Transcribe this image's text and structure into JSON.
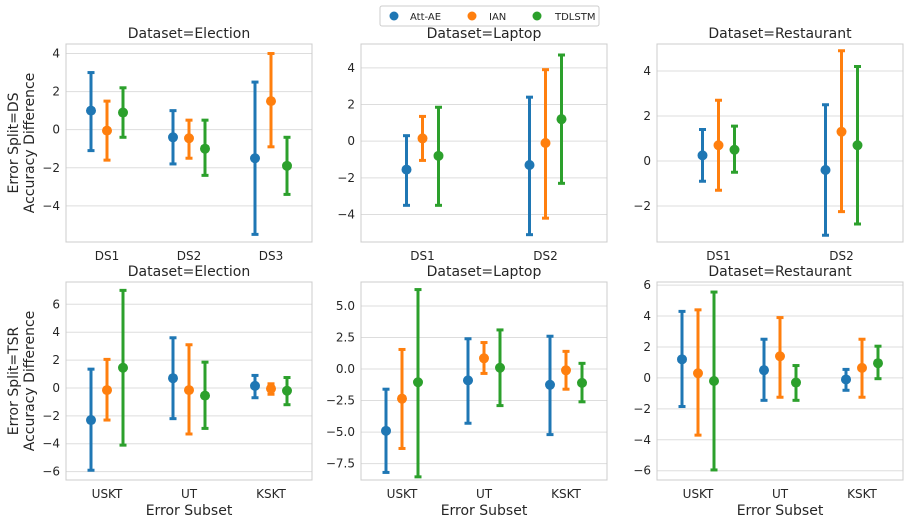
{
  "legend": [
    {
      "label": "Att-AE",
      "color": "#1f77b4"
    },
    {
      "label": "IAN",
      "color": "#ff7f0e"
    },
    {
      "label": "TDLSTM",
      "color": "#2ca02c"
    }
  ],
  "chart_data": [
    {
      "type": "scatter",
      "title": "Dataset=Election",
      "row_label": "Error Split=DS",
      "ylabel": "Accuracy Difference",
      "xlabel": "",
      "categories": [
        "DS1",
        "DS2",
        "DS3"
      ],
      "ylim": [
        -5.9,
        4.5
      ],
      "yticks": [
        -4,
        -2,
        0,
        2,
        4
      ],
      "series": [
        {
          "name": "Att-AE",
          "values": [
            1.0,
            -0.4,
            -1.5
          ],
          "lower": [
            -1.1,
            -1.8,
            -5.5
          ],
          "upper": [
            3.0,
            1.0,
            2.5
          ]
        },
        {
          "name": "IAN",
          "values": [
            -0.05,
            -0.45,
            1.5
          ],
          "lower": [
            -1.6,
            -1.5,
            -0.9
          ],
          "upper": [
            1.5,
            0.5,
            4.0
          ]
        },
        {
          "name": "TDLSTM",
          "values": [
            0.9,
            -1.0,
            -1.9
          ],
          "lower": [
            -0.4,
            -2.4,
            -3.4
          ],
          "upper": [
            2.2,
            0.5,
            -0.4
          ]
        }
      ]
    },
    {
      "type": "scatter",
      "title": "Dataset=Laptop",
      "row_label": "",
      "ylabel": "",
      "xlabel": "",
      "categories": [
        "DS1",
        "DS2"
      ],
      "ylim": [
        -5.5,
        5.3
      ],
      "yticks": [
        -4,
        -2,
        0,
        2,
        4
      ],
      "series": [
        {
          "name": "Att-AE",
          "values": [
            -1.55,
            -1.3
          ],
          "lower": [
            -3.5,
            -5.1
          ],
          "upper": [
            0.3,
            2.4
          ]
        },
        {
          "name": "IAN",
          "values": [
            0.15,
            -0.1
          ],
          "lower": [
            -1.05,
            -4.2
          ],
          "upper": [
            1.35,
            3.9
          ]
        },
        {
          "name": "TDLSTM",
          "values": [
            -0.8,
            1.2
          ],
          "lower": [
            -3.5,
            -2.3
          ],
          "upper": [
            1.85,
            4.7
          ]
        }
      ]
    },
    {
      "type": "scatter",
      "title": "Dataset=Restaurant",
      "row_label": "",
      "ylabel": "",
      "xlabel": "",
      "categories": [
        "DS1",
        "DS2"
      ],
      "ylim": [
        -3.6,
        5.2
      ],
      "yticks": [
        -2,
        0,
        2,
        4
      ],
      "series": [
        {
          "name": "Att-AE",
          "values": [
            0.25,
            -0.4
          ],
          "lower": [
            -0.9,
            -3.3
          ],
          "upper": [
            1.4,
            2.5
          ]
        },
        {
          "name": "IAN",
          "values": [
            0.7,
            1.3
          ],
          "lower": [
            -1.3,
            -2.25
          ],
          "upper": [
            2.7,
            4.9
          ]
        },
        {
          "name": "TDLSTM",
          "values": [
            0.5,
            0.7
          ],
          "lower": [
            -0.5,
            -2.8
          ],
          "upper": [
            1.55,
            4.2
          ]
        }
      ]
    },
    {
      "type": "scatter",
      "title": "Dataset=Election",
      "row_label": "Error Split=TSR",
      "ylabel": "Accuracy Difference",
      "xlabel": "Error Subset",
      "categories": [
        "USKT",
        "UT",
        "KSKT"
      ],
      "ylim": [
        -6.6,
        7.6
      ],
      "yticks": [
        -6,
        -4,
        -2,
        0,
        2,
        4,
        6
      ],
      "series": [
        {
          "name": "Att-AE",
          "values": [
            -2.3,
            0.7,
            0.15
          ],
          "lower": [
            -5.9,
            -2.2,
            -0.7
          ],
          "upper": [
            1.35,
            3.6,
            0.9
          ]
        },
        {
          "name": "IAN",
          "values": [
            -0.15,
            -0.15,
            -0.05
          ],
          "lower": [
            -2.3,
            -3.3,
            -0.45
          ],
          "upper": [
            2.05,
            3.1,
            0.3
          ]
        },
        {
          "name": "TDLSTM",
          "values": [
            1.45,
            -0.55,
            -0.2
          ],
          "lower": [
            -4.1,
            -2.9,
            -1.2
          ],
          "upper": [
            7.0,
            1.85,
            0.75
          ]
        }
      ]
    },
    {
      "type": "scatter",
      "title": "Dataset=Laptop",
      "row_label": "",
      "ylabel": "",
      "xlabel": "Error Subset",
      "categories": [
        "USKT",
        "UT",
        "KSKT"
      ],
      "ylim": [
        -8.8,
        6.9
      ],
      "yticks": [
        -7.5,
        -5.0,
        -2.5,
        0.0,
        2.5,
        5.0
      ],
      "tick_decimals": 1,
      "series": [
        {
          "name": "Att-AE",
          "values": [
            -4.9,
            -0.9,
            -1.25
          ],
          "lower": [
            -8.2,
            -4.3,
            -5.2
          ],
          "upper": [
            -1.6,
            2.4,
            2.6
          ]
        },
        {
          "name": "IAN",
          "values": [
            -2.35,
            0.85,
            -0.1
          ],
          "lower": [
            -6.3,
            -0.35,
            -1.6
          ],
          "upper": [
            1.55,
            2.1,
            1.4
          ]
        },
        {
          "name": "TDLSTM",
          "values": [
            -1.05,
            0.1,
            -1.1
          ],
          "lower": [
            -8.55,
            -2.9,
            -2.6
          ],
          "upper": [
            6.3,
            3.1,
            0.45
          ]
        }
      ]
    },
    {
      "type": "scatter",
      "title": "Dataset=Restaurant",
      "row_label": "",
      "ylabel": "",
      "xlabel": "Error Subset",
      "categories": [
        "USKT",
        "UT",
        "KSKT"
      ],
      "ylim": [
        -6.6,
        6.2
      ],
      "yticks": [
        -6,
        -4,
        -2,
        0,
        2,
        4,
        6
      ],
      "series": [
        {
          "name": "Att-AE",
          "values": [
            1.2,
            0.5,
            -0.1
          ],
          "lower": [
            -1.85,
            -1.45,
            -0.8
          ],
          "upper": [
            4.3,
            2.5,
            0.55
          ]
        },
        {
          "name": "IAN",
          "values": [
            0.3,
            1.4,
            0.65
          ],
          "lower": [
            -3.7,
            -1.25,
            -1.25
          ],
          "upper": [
            4.4,
            3.9,
            2.5
          ]
        },
        {
          "name": "TDLSTM",
          "values": [
            -0.2,
            -0.3,
            0.95
          ],
          "lower": [
            -5.95,
            -1.45,
            -0.05
          ],
          "upper": [
            5.55,
            0.8,
            2.05
          ]
        }
      ]
    }
  ]
}
